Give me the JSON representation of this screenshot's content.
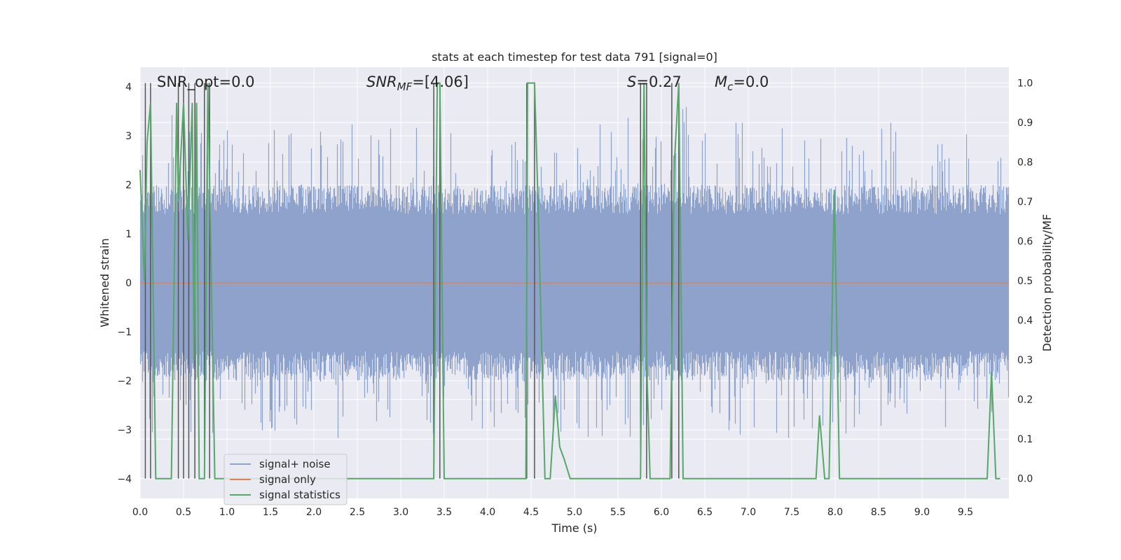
{
  "chart_data": {
    "type": "line",
    "title": "stats at each timestep for test data 791 [signal=0]",
    "xlabel": "Time (s)",
    "ylabel": "Whitened strain",
    "y2label": "Detection probability/MF",
    "xlim": [
      0.0,
      10.0
    ],
    "ylim": [
      -4.4,
      4.4
    ],
    "y2lim": [
      -0.05,
      1.04
    ],
    "xticks": [
      "0.0",
      "0.5",
      "1.0",
      "1.5",
      "2.0",
      "2.5",
      "3.0",
      "3.5",
      "4.0",
      "4.5",
      "5.0",
      "5.5",
      "6.0",
      "6.5",
      "7.0",
      "7.5",
      "8.0",
      "8.5",
      "9.0",
      "9.5"
    ],
    "yticks": [
      "−4",
      "−3",
      "−2",
      "−1",
      "0",
      "1",
      "2",
      "3",
      "4"
    ],
    "y2ticks": [
      "0.0",
      "0.1",
      "0.2",
      "0.3",
      "0.4",
      "0.5",
      "0.6",
      "0.7",
      "0.8",
      "0.9",
      "1.0"
    ],
    "annotations": {
      "snr_opt": "SNR_opt=0.0",
      "snr_mf_base": "SNR",
      "snr_mf_sub": "MF",
      "snr_mf_value": "=[4.06]",
      "s_base": "S",
      "s_value": "=0.27",
      "mc_base": "M",
      "mc_sub": "c",
      "mc_value": "=0.0"
    },
    "series": [
      {
        "name": "signal+ noise",
        "color": "#8ea3cc",
        "axis": "left",
        "description": "whitened noise, approx ±1.6 with spikes to ±3.4"
      },
      {
        "name": "signal only",
        "color": "#dd8452",
        "axis": "left",
        "y": 0.0
      },
      {
        "name": "signal statistics",
        "color": "#55a868",
        "axis": "right",
        "x": [
          0.0,
          0.05,
          0.08,
          0.12,
          0.18,
          0.3,
          0.36,
          0.42,
          0.44,
          0.5,
          0.55,
          0.6,
          0.62,
          0.65,
          0.68,
          0.74,
          0.78,
          0.82,
          0.86,
          3.38,
          3.42,
          3.45,
          3.5,
          4.44,
          4.46,
          4.54,
          4.58,
          4.66,
          4.72,
          4.78,
          4.83,
          4.88,
          4.95,
          5.76,
          5.8,
          5.83,
          5.87,
          6.1,
          6.15,
          6.2,
          6.25,
          7.78,
          7.82,
          7.88,
          7.93,
          7.99,
          8.05,
          9.75,
          9.8,
          9.85,
          9.9
        ],
        "y": [
          0.78,
          0.5,
          0.85,
          0.95,
          0.0,
          0.0,
          0.0,
          0.95,
          0.7,
          0.95,
          0.6,
          0.95,
          0.3,
          0.95,
          0.0,
          0.0,
          1.0,
          0.5,
          0.0,
          0.0,
          1.0,
          1.0,
          0.0,
          0.0,
          1.0,
          1.0,
          0.7,
          0.0,
          0.0,
          0.21,
          0.08,
          0.05,
          0.0,
          0.0,
          1.0,
          0.3,
          0.0,
          0.0,
          0.8,
          1.0,
          0.0,
          0.0,
          0.16,
          0.0,
          0.0,
          0.73,
          0.0,
          0.0,
          0.27,
          0.0,
          0.0
        ]
      }
    ],
    "vlines": [
      0.06,
      0.12,
      0.44,
      0.5,
      0.56,
      0.63,
      0.74,
      0.8,
      3.38,
      3.45,
      4.45,
      4.54,
      5.76,
      5.83,
      6.12,
      6.2
    ],
    "grid": true,
    "legend_position": "lower left"
  }
}
